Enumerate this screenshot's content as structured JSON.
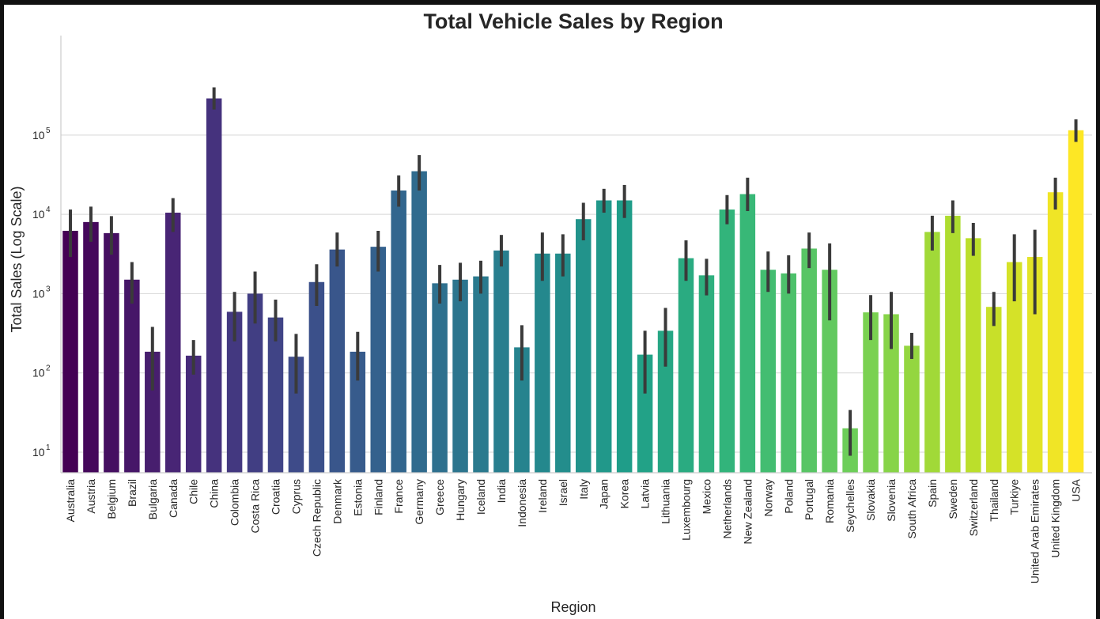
{
  "chart_data": {
    "type": "bar",
    "title": "Total Vehicle Sales by Region",
    "xlabel": "Region",
    "ylabel": "Total Sales (Log Scale)",
    "yscale": "log",
    "ylim": [
      5.5,
      1800000
    ],
    "yticks": [
      {
        "base": "10",
        "exp": "1",
        "value": 10
      },
      {
        "base": "10",
        "exp": "2",
        "value": 100
      },
      {
        "base": "10",
        "exp": "3",
        "value": 1000
      },
      {
        "base": "10",
        "exp": "4",
        "value": 10000
      },
      {
        "base": "10",
        "exp": "5",
        "value": 100000
      }
    ],
    "grid": "horizontal",
    "palette": "viridis",
    "error_bar_color": "#3a3a3a",
    "categories": [
      "Australia",
      "Austria",
      "Belgium",
      "Brazil",
      "Bulgaria",
      "Canada",
      "Chile",
      "China",
      "Colombia",
      "Costa Rica",
      "Croatia",
      "Cyprus",
      "Czech Republic",
      "Denmark",
      "Estonia",
      "Finland",
      "France",
      "Germany",
      "Greece",
      "Hungary",
      "Iceland",
      "India",
      "Indonesia",
      "Ireland",
      "Israel",
      "Italy",
      "Japan",
      "Korea",
      "Latvia",
      "Lithuania",
      "Luxembourg",
      "Mexico",
      "Netherlands",
      "New Zealand",
      "Norway",
      "Poland",
      "Portugal",
      "Romania",
      "Seychelles",
      "Slovakia",
      "Slovenia",
      "South Africa",
      "Spain",
      "Sweden",
      "Switzerland",
      "Thailand",
      "Turkiye",
      "United Arab Emirates",
      "United Kingdom",
      "USA"
    ],
    "values": [
      6200,
      8000,
      5800,
      1500,
      185,
      10500,
      165,
      290000,
      590,
      1000,
      500,
      160,
      1400,
      3600,
      185,
      3900,
      20000,
      35000,
      1350,
      1500,
      1650,
      3500,
      210,
      3200,
      3200,
      8700,
      15000,
      15000,
      170,
      340,
      2800,
      1700,
      11500,
      18000,
      2000,
      1800,
      3700,
      2000,
      20,
      580,
      550,
      220,
      6000,
      9600,
      5000,
      680,
      2500,
      2900,
      19000,
      115000
    ],
    "error_low": [
      2900,
      4500,
      3100,
      750,
      60,
      6000,
      95,
      210000,
      250,
      420,
      250,
      55,
      700,
      2200,
      80,
      1900,
      12500,
      20000,
      750,
      800,
      1000,
      2200,
      80,
      1450,
      1650,
      4700,
      10500,
      9000,
      55,
      120,
      1450,
      950,
      7500,
      11000,
      1050,
      1000,
      2100,
      460,
      9,
      260,
      200,
      150,
      3500,
      5800,
      3000,
      390,
      800,
      550,
      11500,
      82000
    ],
    "error_high": [
      11500,
      12500,
      9500,
      2500,
      380,
      16000,
      260,
      400000,
      1050,
      1900,
      840,
      310,
      2350,
      5900,
      330,
      6200,
      31000,
      56000,
      2300,
      2450,
      2600,
      5500,
      400,
      5900,
      5600,
      14000,
      21000,
      23500,
      340,
      660,
      4700,
      2750,
      17500,
      29000,
      3400,
      3050,
      5900,
      4300,
      34,
      960,
      1050,
      320,
      9600,
      15000,
      7800,
      1050,
      5600,
      6400,
      29000,
      158000
    ]
  }
}
